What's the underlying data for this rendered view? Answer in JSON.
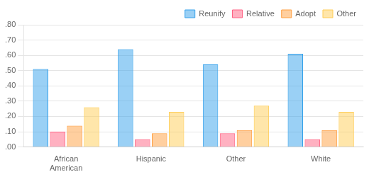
{
  "chart_data": {
    "type": "bar",
    "categories": [
      "African\nAmerican",
      "Hispanic",
      "Other",
      "White"
    ],
    "series": [
      {
        "name": "Reunify",
        "values": [
          0.51,
          0.64,
          0.54,
          0.61
        ]
      },
      {
        "name": "Relative",
        "values": [
          0.1,
          0.05,
          0.09,
          0.05
        ]
      },
      {
        "name": "Adopt",
        "values": [
          0.14,
          0.09,
          0.11,
          0.11
        ]
      },
      {
        "name": "Other",
        "values": [
          0.26,
          0.23,
          0.27,
          0.23
        ]
      }
    ],
    "ylim": [
      0.0,
      0.8
    ],
    "yticks": [
      {
        "value": 0.0,
        "label": ".00"
      },
      {
        "value": 0.1,
        "label": ".10"
      },
      {
        "value": 0.2,
        "label": ".20"
      },
      {
        "value": 0.3,
        "label": ".30"
      },
      {
        "value": 0.4,
        "label": ".40"
      },
      {
        "value": 0.5,
        "label": ".50"
      },
      {
        "value": 0.6,
        "label": ".60"
      },
      {
        "value": 0.7,
        "label": ".70"
      },
      {
        "value": 0.8,
        "label": ".80"
      }
    ],
    "grid": true,
    "legend": "upper right"
  }
}
